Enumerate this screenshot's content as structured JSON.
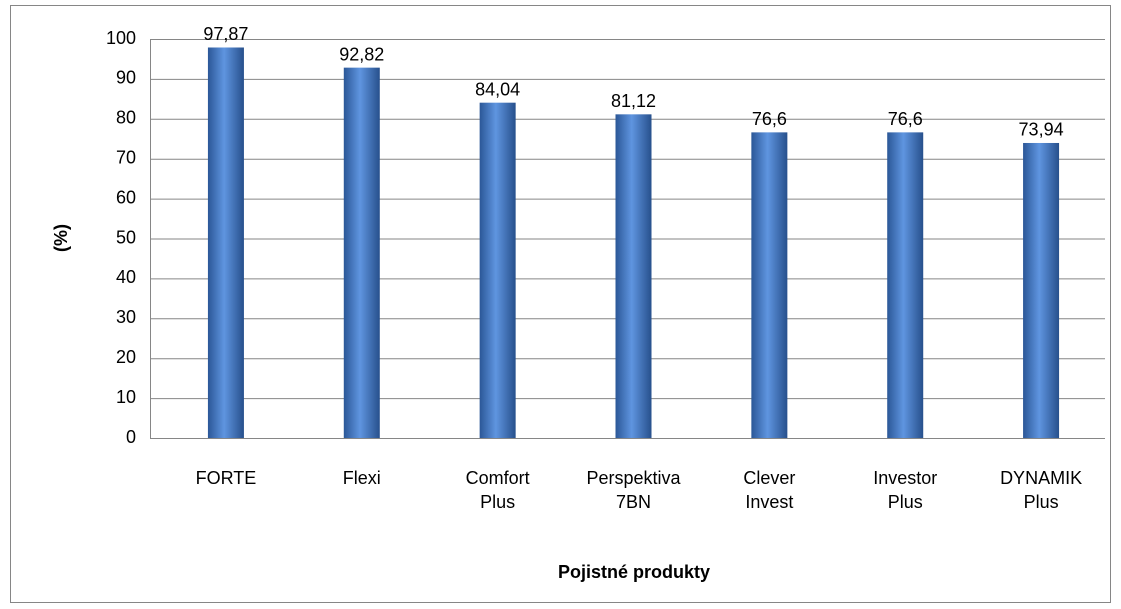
{
  "chart_data": {
    "type": "bar",
    "x_label": "Pojistné produkty",
    "y_label": "(%)",
    "categories": [
      "FORTE",
      "Flexi",
      "Comfort Plus",
      "Perspektiva 7BN",
      "Clever Invest",
      "Investor Plus",
      "DYNAMIK Plus"
    ],
    "values": [
      97.87,
      92.82,
      84.04,
      81.12,
      76.6,
      76.6,
      73.94
    ],
    "value_labels": [
      "97,87",
      "92,82",
      "84,04",
      "81,12",
      "76,6",
      "76,6",
      "73,94"
    ],
    "color": "#4a7cc7",
    "ylim": [
      0,
      100
    ],
    "yticks": [
      0,
      10,
      20,
      30,
      40,
      50,
      60,
      70,
      80,
      90,
      100
    ],
    "grid": true
  }
}
